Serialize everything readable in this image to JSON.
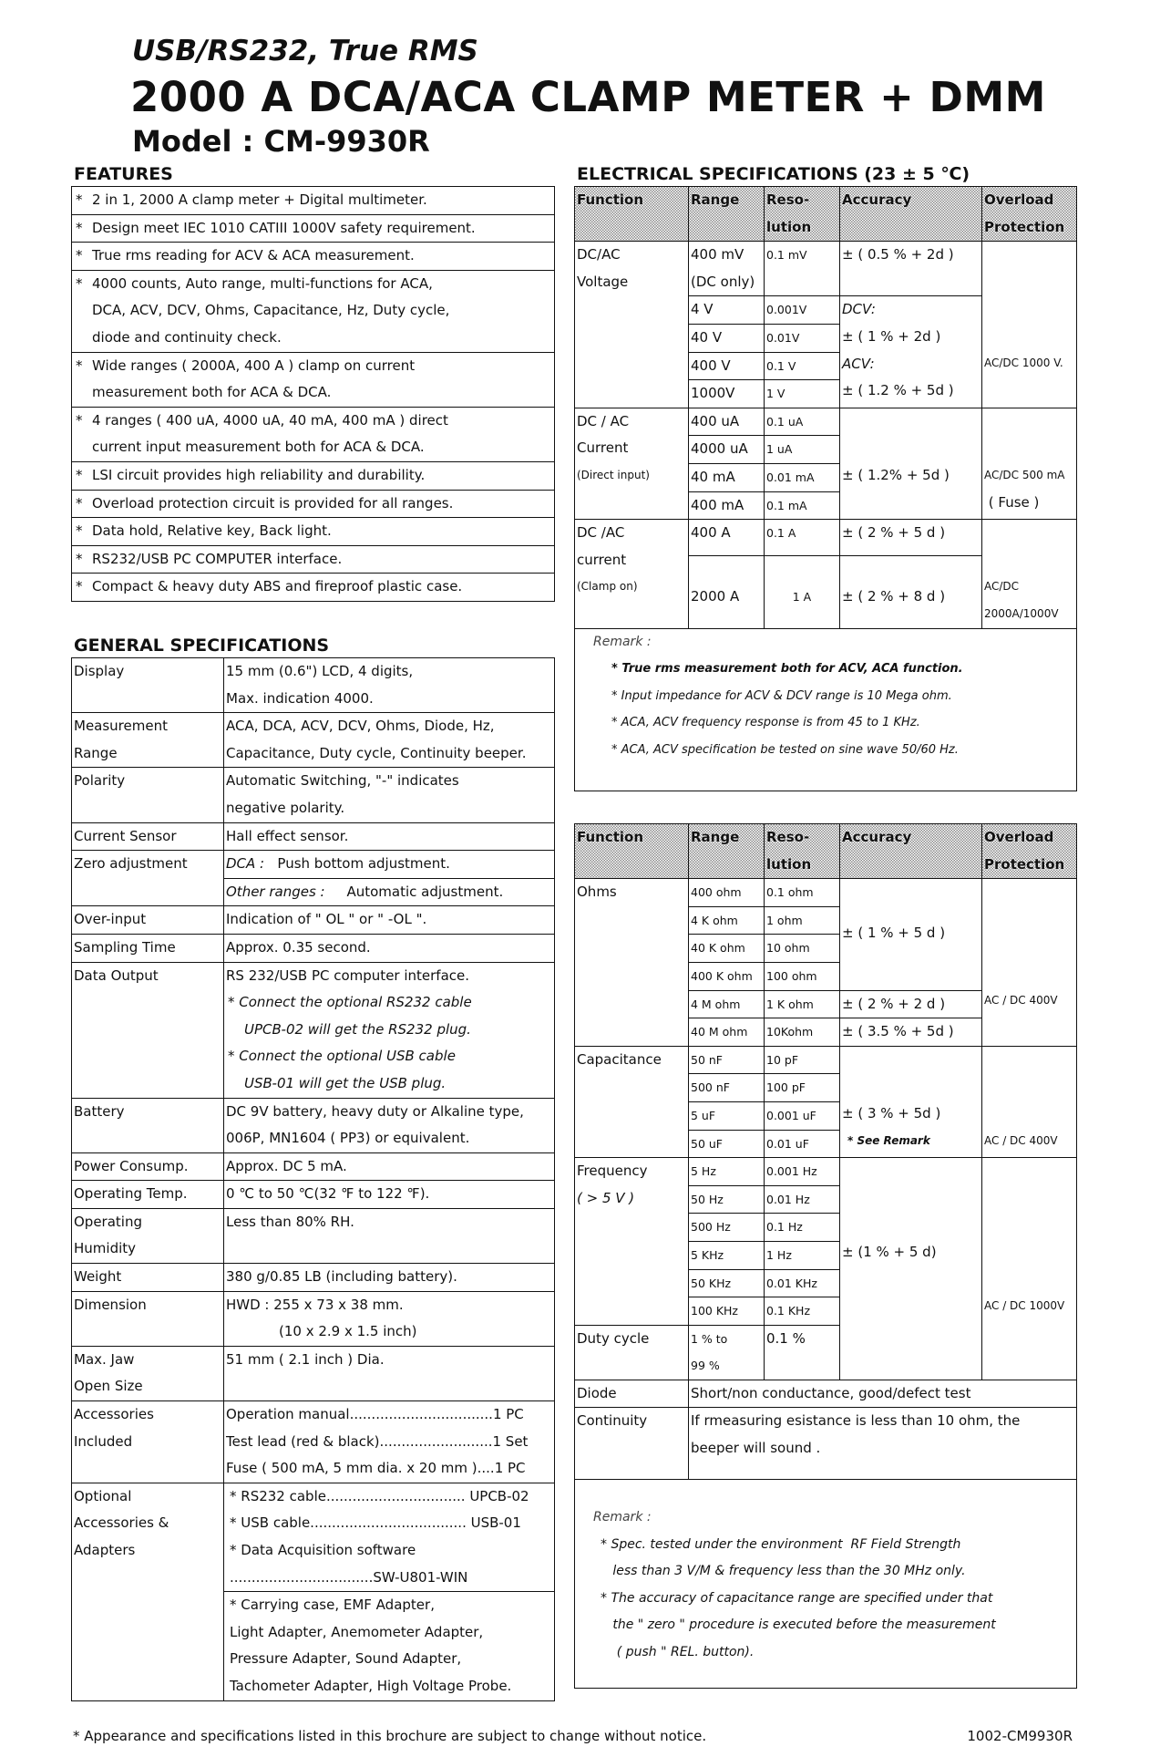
{
  "header": {
    "subtitle": "USB/RS232, True RMS",
    "title": "2000 A DCA/ACA CLAMP METER + DMM",
    "model": "Model : CM-9930R"
  },
  "features": {
    "heading": "FEATURES",
    "star": "*",
    "items": [
      [
        "2 in 1, 2000 A clamp meter + Digital multimeter."
      ],
      [
        "Design meet IEC 1010 CATIII 1000V safety requirement."
      ],
      [
        "True rms reading for ACV & ACA measurement."
      ],
      [
        "4000 counts, Auto range, multi-functions for ACA,",
        "DCA, ACV, DCV,  Ohms, Capacitance, Hz, Duty  cycle,",
        "diode and continuity check."
      ],
      [
        "Wide ranges ( 2000A, 400 A ) clamp on current",
        "measurement both for ACA & DCA."
      ],
      [
        "4 ranges ( 400 uA, 4000 uA, 40 mA,  400 mA ) direct",
        "current input measurement both for ACA & DCA."
      ],
      [
        "LSI circuit provides high reliability and durability."
      ],
      [
        "Overload protection circuit is provided for all ranges."
      ],
      [
        "Data hold, Relative key, Back light."
      ],
      [
        "RS232/USB PC COMPUTER interface."
      ],
      [
        "Compact & heavy duty ABS and fireproof plastic case."
      ]
    ]
  },
  "general": {
    "heading": "GENERAL SPECIFICATIONS",
    "display": {
      "label": [
        "Display"
      ],
      "value": [
        "15 mm (0.6\") LCD, 4 digits,",
        "Max. indication 4000."
      ]
    },
    "measurement_range": {
      "label": [
        "Measurement",
        "Range"
      ],
      "value": [
        "ACA, DCA, ACV, DCV, Ohms, Diode, Hz,",
        "Capacitance, Duty cycle, Continuity beeper."
      ]
    },
    "polarity": {
      "label": [
        "Polarity"
      ],
      "value": [
        "Automatic Switching, \"-\" indicates",
        "negative polarity."
      ]
    },
    "current_sensor": {
      "label": "Current Sensor",
      "value": "Hall effect sensor."
    },
    "zero_adjustment": {
      "label": "Zero adjustment",
      "dca_key": "DCA :",
      "dca_value": "Push bottom adjustment.",
      "other_key": "Other ranges :",
      "other_value": "Automatic adjustment."
    },
    "over_input": {
      "label": "Over-input",
      "value": "Indication of \" OL \" or \" -OL \"."
    },
    "sampling_time": {
      "label": "Sampling Time",
      "value": "Approx. 0.35 second."
    },
    "data_output": {
      "label": "Data Output",
      "value": "RS 232/USB PC computer interface.",
      "notes": [
        "*  Connect the optional RS232 cable",
        "UPCB-02 will get the RS232 plug.",
        "*  Connect the optional USB cable",
        "USB-01 will get the USB plug."
      ]
    },
    "battery": {
      "label": [
        "Battery"
      ],
      "value": [
        "DC 9V battery, heavy duty or Alkaline type,",
        "006P, MN1604 ( PP3) or equivalent."
      ]
    },
    "power": {
      "label": "Power Consump.",
      "value": "Approx. DC 5 mA."
    },
    "operating_temp": {
      "label": "Operating Temp.",
      "value": "0 ℃ to 50 ℃(32 ℉ to 122 ℉)."
    },
    "operating_humidity": {
      "label": [
        "Operating",
        "Humidity"
      ],
      "value": [
        "Less than 80% RH."
      ]
    },
    "weight": {
      "label": "Weight",
      "value": "380 g/0.85 LB (including battery)."
    },
    "dimension": {
      "label": [
        "Dimension"
      ],
      "value": [
        "HWD : 255 x 73 x 38 mm.",
        "(10 x 2.9 x 1.5 inch)"
      ]
    },
    "max_jaw": {
      "label": [
        "Max. Jaw",
        "Open Size"
      ],
      "value": [
        "51 mm ( 2.1 inch ) Dia."
      ]
    },
    "accessories": {
      "label": [
        "Accessories",
        "Included"
      ],
      "value": [
        "Operation manual.................................1 PC",
        "Test lead (red & black)..........................1 Set",
        "Fuse ( 500 mA, 5 mm dia. x 20 mm )....1 PC"
      ]
    },
    "optional": {
      "label": [
        "Optional",
        "Accessories &",
        "Adapters"
      ],
      "value_a": [
        "* RS232 cable................................ UPCB-02",
        "* USB cable.................................... USB-01",
        "* Data Acquisition software",
        "   .................................SW-U801-WIN"
      ],
      "value_b": [
        "* Carrying case, EMF Adapter,",
        "   Light Adapter, Anemometer Adapter,",
        "   Pressure Adapter, Sound Adapter,",
        "   Tachometer Adapter,  High Voltage Probe."
      ]
    }
  },
  "electrical": {
    "heading": "ELECTRICAL SPECIFICATIONS (23 ± 5 ℃)",
    "columns": {
      "function": "Function",
      "range": [
        "Range"
      ],
      "resolution": [
        "Reso-",
        "lution"
      ],
      "accuracy": "Accuracy",
      "overload": [
        "Overload",
        "Protection"
      ]
    },
    "voltage": {
      "function": [
        "DC/AC",
        "Voltage"
      ],
      "ranges": [
        [
          "400 mV",
          "(DC only)"
        ],
        "4 V",
        "40 V",
        "400 V",
        "1000V"
      ],
      "resolutions": [
        "0.1 mV",
        "0.001V",
        "0.01V",
        "0.1 V",
        "1 V"
      ],
      "accuracy_first": "± ( 0.5 % + 2d )",
      "accuracy_rest": [
        "DCV:",
        "± ( 1 % + 2d )",
        "ACV:",
        "± ( 1.2 % + 5d )"
      ],
      "overload": "AC/DC 1000 V."
    },
    "current": {
      "function": [
        "DC / AC",
        "Current",
        "(Direct input)"
      ],
      "ranges": [
        "400 uA",
        "4000 uA",
        "40 mA",
        "400 mA"
      ],
      "resolutions": [
        "0.1 uA",
        "1 uA",
        "0.01 mA",
        "0.1 mA"
      ],
      "accuracy": "± ( 1.2% + 5d )",
      "overload": [
        "AC/DC 500 mA",
        " ( Fuse )"
      ]
    },
    "clamp": {
      "function": [
        "DC /AC",
        "current",
        "(Clamp on)"
      ],
      "ranges": [
        "400 A",
        "2000 A"
      ],
      "resolutions": [
        "0.1 A",
        "1 A"
      ],
      "accuracy": [
        "± ( 2 % + 5 d )",
        "± ( 2 % + 8 d )"
      ],
      "overload": [
        "AC/DC",
        "2000A/1000V"
      ]
    },
    "remark": [
      "Remark :",
      "*  True rms measurement both for ACV, ACA function.",
      "*  Input impedance for ACV & DCV range is 10 Mega ohm.",
      "*  ACA, ACV frequency response is from 45 to 1 KHz.",
      "*  ACA, ACV specification be tested on sine wave 50/60 Hz."
    ]
  },
  "electrical2": {
    "ohms": {
      "function": "Ohms",
      "ranges": [
        "400 ohm",
        "4 K ohm",
        "40 K ohm",
        "400 K ohm",
        "4 M ohm",
        "40 M ohm"
      ],
      "resolutions": [
        "0.1 ohm",
        "1 ohm",
        "10 ohm",
        "100 ohm",
        "1 K ohm",
        "10Kohm"
      ],
      "accuracy": [
        "± ( 1 % + 5 d )",
        "± ( 2 % + 2 d )",
        "± ( 3.5 % + 5d )"
      ],
      "overload": "AC / DC 400V"
    },
    "capacitance": {
      "function": "Capacitance",
      "ranges": [
        "50 nF",
        "500 nF",
        "5 uF",
        "50 uF"
      ],
      "resolutions": [
        "10 pF",
        "100 pF",
        "0.001 uF",
        "0.01 uF"
      ],
      "accuracy": "± ( 3 % + 5d )",
      "see_remark": "* See Remark",
      "overload": "AC / DC 400V"
    },
    "frequency": {
      "function": "Frequency",
      "condition": "( > 5 V )",
      "ranges": [
        "5 Hz",
        "50 Hz",
        "500 Hz",
        "5 KHz",
        "50 KHz",
        "100 KHz"
      ],
      "resolutions": [
        "0.001 Hz",
        "0.01 Hz",
        "0.1 Hz",
        "1 Hz",
        "0.01 KHz",
        "0.1 KHz"
      ],
      "accuracy": "± (1 % + 5 d)",
      "overload": "AC / DC 1000V"
    },
    "duty": {
      "function": "Duty cycle",
      "range": [
        "1 % to",
        "99 %"
      ],
      "resolution": "0.1 %"
    },
    "diode": {
      "function": "Diode",
      "value": "Short/non conductance, good/defect test"
    },
    "continuity": {
      "function": "Continuity",
      "value": [
        "If rmeasuring esistance is less than 10 ohm, the",
        "beeper will sound ."
      ]
    },
    "remark": [
      "Remark :",
      "* Spec. tested under the environment  RF Field Strength",
      "   less than 3 V/M & frequency less than the 30 MHz only.",
      "* The accuracy of capacitance range are specified under that",
      "   the \" zero \" procedure is executed before the measurement",
      "    ( push \" REL. button)."
    ]
  },
  "footer": {
    "disclaimer": "* Appearance and specifications listed in this brochure are subject to change without notice.",
    "code": "1002-CM9930R"
  }
}
